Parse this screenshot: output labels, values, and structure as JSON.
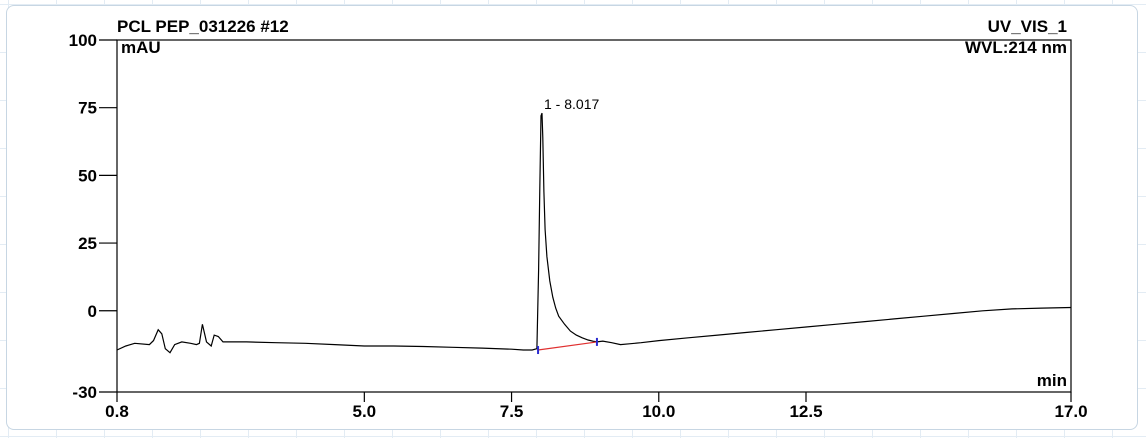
{
  "chart_data": {
    "type": "line",
    "title": "PCL PEP_031226 #12",
    "channel": "UV_VIS_1",
    "wavelength": "WVL:214 nm",
    "ylabel": "mAU",
    "xlabel": "min",
    "xlim": [
      0.8,
      17.0
    ],
    "ylim": [
      -30,
      100
    ],
    "x_ticks": [
      {
        "value": 0.8,
        "label": "0.8"
      },
      {
        "value": 5.0,
        "label": "5.0"
      },
      {
        "value": 7.5,
        "label": "7.5"
      },
      {
        "value": 10.0,
        "label": "10.0"
      },
      {
        "value": 12.5,
        "label": "12.5"
      },
      {
        "value": 17.0,
        "label": "17.0"
      }
    ],
    "y_ticks": [
      {
        "value": -30,
        "label": "-30"
      },
      {
        "value": 0,
        "label": "0"
      },
      {
        "value": 25,
        "label": "25"
      },
      {
        "value": 50,
        "label": "50"
      },
      {
        "value": 75,
        "label": "75"
      },
      {
        "value": 100,
        "label": "100"
      }
    ],
    "series": [
      {
        "x": [
          0.8,
          0.95,
          1.1,
          1.35,
          1.42,
          1.5,
          1.56,
          1.62,
          1.7,
          1.78,
          1.9,
          2.05,
          2.15,
          2.2,
          2.25,
          2.32,
          2.4,
          2.45,
          2.52,
          2.6,
          2.75,
          3.0,
          3.5,
          4.0,
          4.5,
          5.0,
          5.5,
          6.0,
          6.5,
          7.0,
          7.5,
          7.7,
          7.85,
          7.93,
          7.96,
          7.98,
          8.0,
          8.017,
          8.03,
          8.05,
          8.07,
          8.1,
          8.15,
          8.2,
          8.25,
          8.3,
          8.4,
          8.5,
          8.6,
          8.7,
          8.8,
          8.9,
          8.95,
          9.05,
          9.2,
          9.35,
          9.5,
          9.7,
          10.0,
          10.5,
          11.0,
          11.5,
          12.0,
          12.5,
          13.0,
          13.5,
          14.0,
          14.5,
          15.0,
          15.5,
          16.0,
          16.5,
          17.0
        ],
        "y": [
          -14.5,
          -13.0,
          -12.0,
          -12.5,
          -11.0,
          -7.0,
          -8.5,
          -14.0,
          -15.5,
          -12.5,
          -11.5,
          -12.0,
          -12.5,
          -12.0,
          -5.0,
          -11.5,
          -13.0,
          -9.0,
          -9.5,
          -11.5,
          -11.5,
          -11.5,
          -11.8,
          -12.0,
          -12.5,
          -13.0,
          -13.0,
          -13.2,
          -13.5,
          -13.8,
          -14.2,
          -14.5,
          -14.5,
          -14.0,
          15.0,
          45.0,
          72.0,
          73.0,
          64.0,
          44.0,
          30.0,
          20.0,
          11.0,
          5.0,
          1.0,
          -2.0,
          -5.0,
          -7.5,
          -9.0,
          -10.0,
          -10.8,
          -11.3,
          -11.5,
          -11.2,
          -11.8,
          -12.5,
          -12.2,
          -11.8,
          -11.0,
          -10.0,
          -9.0,
          -8.0,
          -7.0,
          -6.0,
          -5.0,
          -4.0,
          -3.0,
          -2.0,
          -1.0,
          0.0,
          0.7,
          1.0,
          1.2
        ]
      }
    ],
    "peaks": [
      {
        "label": "1 - 8.017",
        "rt": 8.017,
        "height": 73.0,
        "baseline_start": [
          7.95,
          -14.5
        ],
        "baseline_end": [
          8.95,
          -11.5
        ]
      }
    ],
    "colors": {
      "trace": "#000000",
      "baseline": "#e03030",
      "marker": "#2a2ad0",
      "axes": "#000000"
    },
    "grid": false
  }
}
